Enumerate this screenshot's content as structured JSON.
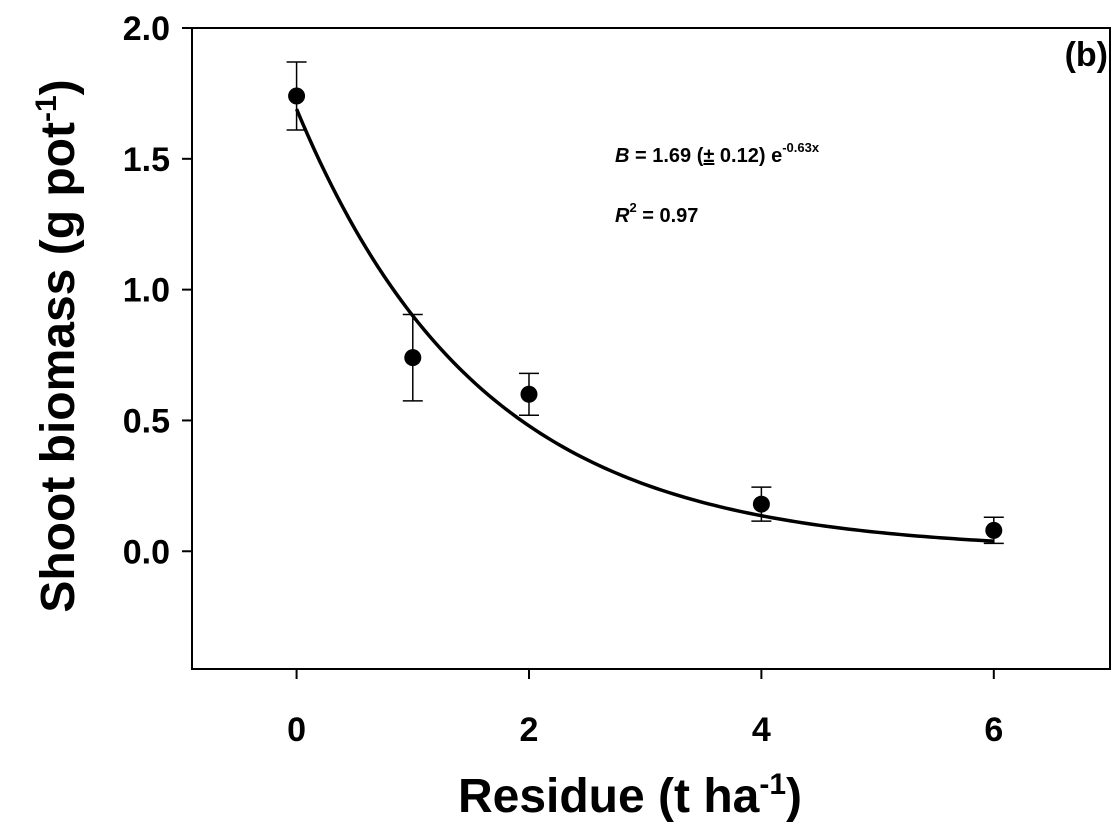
{
  "chart_data": {
    "type": "scatter",
    "panel_label": "(b)",
    "ylabel": "Shoot biomass (g pot",
    "ylabel_sup": "-1",
    "ylabel_close": ")",
    "xlabel": "Residue (t ha",
    "xlabel_sup": "-1",
    "xlabel_close": ")",
    "xlim": [
      -0.9,
      7.0
    ],
    "ylim": [
      -0.45,
      2.0
    ],
    "x_ticks": [
      0,
      2,
      4,
      6
    ],
    "x_tick_labels": [
      "0",
      "2",
      "4",
      "6"
    ],
    "y_ticks": [
      0.0,
      0.5,
      1.0,
      1.5,
      2.0
    ],
    "y_tick_labels": [
      "0.0",
      "0.5",
      "1.0",
      "1.5",
      "2.0"
    ],
    "grid": false,
    "legend": "none",
    "points": [
      {
        "x": 0,
        "y": 1.74,
        "err": 0.13
      },
      {
        "x": 1,
        "y": 0.74,
        "err": 0.165
      },
      {
        "x": 2,
        "y": 0.6,
        "err": 0.08
      },
      {
        "x": 4,
        "y": 0.18,
        "err": 0.065
      },
      {
        "x": 6,
        "y": 0.08,
        "err": 0.05
      }
    ],
    "fit": {
      "a": 1.69,
      "b": -0.63
    },
    "annotation": {
      "eq_var": "B",
      "eq_mid": " = 1.69 (",
      "eq_pm": "±",
      "eq_rest": " 0.12) e",
      "eq_sup": "-0.63x",
      "r2_var": "R",
      "r2_sup": "2",
      "r2_rest": " = 0.97"
    }
  }
}
